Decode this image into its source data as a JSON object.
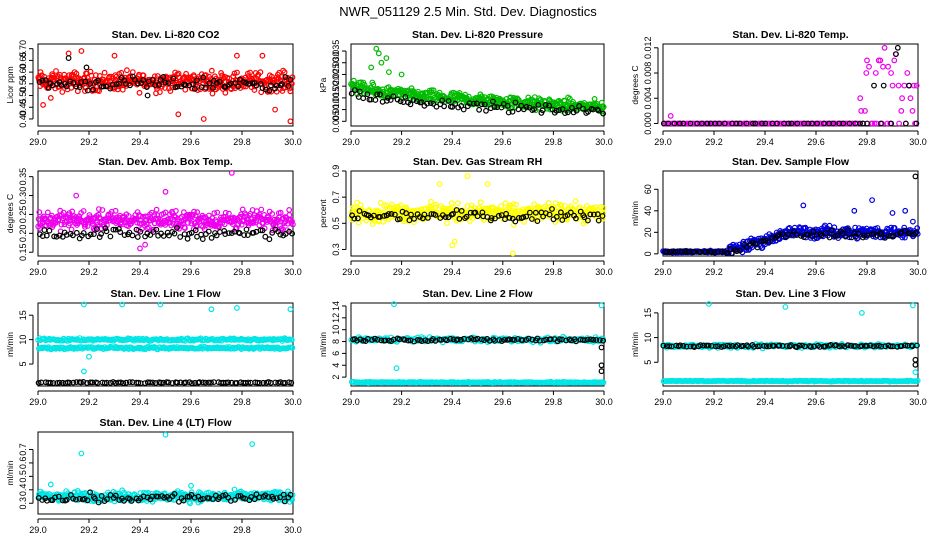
{
  "figure_title": "NWR_051129  2.5 Min. Std. Dev. Diagnostics",
  "chart_data": [
    {
      "type": "scatter",
      "title": "Stan. Dev. Li-820 CO2",
      "xlabel": "",
      "ylabel": "Licor ppm",
      "xlim": [
        29.0,
        30.0
      ],
      "ylim": [
        0.37,
        0.72
      ],
      "x_ticks": [
        "29.0",
        "29.2",
        "29.4",
        "29.6",
        "29.8",
        "30.0"
      ],
      "y_ticks": [
        0.4,
        0.45,
        0.5,
        0.55,
        0.6,
        0.65,
        0.7
      ],
      "y_tick_labels": [
        "0.40",
        "0.45",
        "0.50",
        "0.55",
        "0.60",
        "0.65",
        "0.70"
      ],
      "series": [
        {
          "color": "#ff0000",
          "x_range": [
            29.0,
            30.0
          ],
          "distribution": "uniform",
          "center": 0.56,
          "spread": 0.06,
          "n": 420,
          "outliers": [
            [
              29.02,
              0.46
            ],
            [
              29.05,
              0.49
            ],
            [
              29.12,
              0.68
            ],
            [
              29.17,
              0.69
            ],
            [
              29.3,
              0.67
            ],
            [
              29.55,
              0.42
            ],
            [
              29.65,
              0.4
            ],
            [
              29.78,
              0.67
            ],
            [
              29.88,
              0.67
            ],
            [
              29.99,
              0.39
            ],
            [
              29.93,
              0.44
            ]
          ]
        },
        {
          "color": "#000000",
          "x_range": [
            29.0,
            30.0
          ],
          "distribution": "uniform",
          "center": 0.55,
          "spread": 0.04,
          "n": 90,
          "outliers": [
            [
              29.12,
              0.66
            ],
            [
              29.19,
              0.62
            ],
            [
              29.43,
              0.5
            ]
          ]
        }
      ]
    },
    {
      "type": "scatter",
      "title": "Stan. Dev. Li-820 Pressure",
      "xlabel": "",
      "ylabel": "kPa",
      "xlim": [
        29.0,
        30.0
      ],
      "ylim": [
        0.003,
        0.038
      ],
      "x_ticks": [
        "29.0",
        "29.2",
        "29.4",
        "29.6",
        "29.8",
        "30.0"
      ],
      "y_ticks": [
        0.005,
        0.01,
        0.015,
        0.02,
        0.025,
        0.03,
        0.035
      ],
      "y_tick_labels": [
        "0.005",
        "0.010",
        "0.015",
        "0.020",
        "0.025",
        "0.030",
        "0.035"
      ],
      "series": [
        {
          "color": "#00bb00",
          "x_range": [
            29.0,
            30.0
          ],
          "distribution": "decay",
          "start": 0.021,
          "end": 0.011,
          "spread": 0.004,
          "n": 420,
          "outliers": [
            [
              29.1,
              0.036
            ],
            [
              29.11,
              0.034
            ],
            [
              29.12,
              0.03
            ],
            [
              29.14,
              0.032
            ],
            [
              29.08,
              0.028
            ],
            [
              29.15,
              0.026
            ],
            [
              29.2,
              0.025
            ]
          ]
        },
        {
          "color": "#000000",
          "x_range": [
            29.0,
            30.0
          ],
          "distribution": "decay",
          "start": 0.018,
          "end": 0.009,
          "spread": 0.003,
          "n": 90,
          "outliers": []
        }
      ]
    },
    {
      "type": "scatter",
      "title": "Stan. Dev. Li-820 Temp.",
      "xlabel": "",
      "ylabel": "degrees C",
      "xlim": [
        29.0,
        30.0
      ],
      "ylim": [
        -0.0004,
        0.0126
      ],
      "x_ticks": [
        "29.0",
        "29.2",
        "29.4",
        "29.6",
        "29.8",
        "30.0"
      ],
      "y_ticks": [
        0.0,
        0.004,
        0.008,
        0.012
      ],
      "y_tick_labels": [
        "0.000",
        "0.004",
        "0.008",
        "0.012"
      ],
      "series": [
        {
          "color": "#ee00ee",
          "x_range": [
            29.0,
            30.0
          ],
          "distribution": "step",
          "base": 0.0,
          "step_x": 29.76,
          "high_values": [
            0.002,
            0.004,
            0.006,
            0.008,
            0.009,
            0.01,
            0.011,
            0.012
          ],
          "n": 160,
          "outliers": [
            [
              29.03,
              0.0012
            ]
          ]
        },
        {
          "color": "#000000",
          "x_range": [
            29.0,
            30.0
          ],
          "distribution": "step",
          "base": 0.0,
          "step_x": 29.8,
          "high_values": [
            0.006,
            0.009,
            0.011,
            0.012
          ],
          "n": 50,
          "outliers": []
        }
      ]
    },
    {
      "type": "scatter",
      "title": "Stan. Dev. Amb. Box Temp.",
      "xlabel": "",
      "ylabel": "degrees C",
      "xlim": [
        29.0,
        30.0
      ],
      "ylim": [
        0.14,
        0.365
      ],
      "x_ticks": [
        "29.0",
        "29.2",
        "29.4",
        "29.6",
        "29.8",
        "30.0"
      ],
      "y_ticks": [
        0.15,
        0.2,
        0.25,
        0.3,
        0.35
      ],
      "y_tick_labels": [
        "0.15",
        "0.20",
        "0.25",
        "0.30",
        "0.35"
      ],
      "series": [
        {
          "color": "#ee00ee",
          "x_range": [
            29.0,
            30.0
          ],
          "distribution": "uniform",
          "center": 0.235,
          "spread": 0.035,
          "n": 420,
          "outliers": [
            [
              29.4,
              0.16
            ],
            [
              29.42,
              0.17
            ],
            [
              29.76,
              0.36
            ],
            [
              29.15,
              0.3
            ],
            [
              29.5,
              0.31
            ]
          ]
        },
        {
          "color": "#000000",
          "x_range": [
            29.0,
            30.0
          ],
          "distribution": "uniform",
          "center": 0.2,
          "spread": 0.02,
          "n": 90,
          "outliers": []
        }
      ]
    },
    {
      "type": "scatter",
      "title": "Stan. Dev. Gas Stream RH",
      "xlabel": "",
      "ylabel": "percent",
      "xlim": [
        29.0,
        30.0
      ],
      "ylim": [
        0.25,
        0.9
      ],
      "x_ticks": [
        "29.0",
        "29.2",
        "29.4",
        "29.6",
        "29.8",
        "30.0"
      ],
      "y_ticks": [
        0.3,
        0.5,
        0.7,
        0.9
      ],
      "y_tick_labels": [
        "0.3",
        "0.5",
        "0.7",
        "0.9"
      ],
      "series": [
        {
          "color": "#ffff00",
          "x_range": [
            29.0,
            30.0
          ],
          "distribution": "uniform",
          "center": 0.58,
          "spread": 0.1,
          "n": 420,
          "outliers": [
            [
              29.4,
              0.33
            ],
            [
              29.41,
              0.36
            ],
            [
              29.64,
              0.27
            ],
            [
              29.35,
              0.8
            ],
            [
              29.46,
              0.86
            ],
            [
              29.54,
              0.8
            ]
          ]
        },
        {
          "color": "#000000",
          "x_range": [
            29.0,
            30.0
          ],
          "distribution": "uniform",
          "center": 0.56,
          "spread": 0.06,
          "n": 90,
          "outliers": []
        }
      ]
    },
    {
      "type": "scatter",
      "title": "Stan. Dev. Sample Flow",
      "xlabel": "",
      "ylabel": "ml/min",
      "xlim": [
        29.0,
        30.0
      ],
      "ylim": [
        -2,
        77
      ],
      "x_ticks": [
        "29.0",
        "29.2",
        "29.4",
        "29.6",
        "29.8",
        "30.0"
      ],
      "y_ticks": [
        0,
        20,
        40,
        60
      ],
      "y_tick_labels": [
        "0",
        "20",
        "40",
        "60"
      ],
      "series": [
        {
          "color": "#0000dd",
          "x_range": [
            29.0,
            30.0
          ],
          "distribution": "ramp",
          "start": 2,
          "ramp_start": 29.25,
          "ramp_end": 29.5,
          "end": 20,
          "spread": 8,
          "n": 420,
          "outliers": [
            [
              29.55,
              45
            ],
            [
              29.75,
              40
            ],
            [
              29.82,
              50
            ],
            [
              29.9,
              38
            ],
            [
              29.95,
              40
            ],
            [
              29.98,
              30
            ]
          ]
        },
        {
          "color": "#000000",
          "x_range": [
            29.0,
            30.0
          ],
          "distribution": "ramp",
          "start": 2,
          "ramp_start": 29.25,
          "ramp_end": 29.5,
          "end": 18,
          "spread": 5,
          "n": 90,
          "outliers": [
            [
              29.99,
              72
            ]
          ]
        }
      ]
    },
    {
      "type": "scatter",
      "title": "Stan. Dev. Line 1 Flow",
      "xlabel": "",
      "ylabel": "ml/min",
      "xlim": [
        29.0,
        30.0
      ],
      "ylim": [
        0.5,
        17.5
      ],
      "x_ticks": [
        "29.0",
        "29.2",
        "29.4",
        "29.6",
        "29.8",
        "30.0"
      ],
      "y_ticks": [
        5,
        10,
        15
      ],
      "y_tick_labels": [
        "5",
        "10",
        "15"
      ],
      "series": [
        {
          "color": "#00e5e5",
          "x_range": [
            29.0,
            30.0
          ],
          "distribution": "bands",
          "bands": [
            [
              10.0,
              0.4
            ],
            [
              8.3,
              0.4
            ]
          ],
          "n": 420,
          "outliers": [
            [
              29.18,
              17.2
            ],
            [
              29.33,
              17.2
            ],
            [
              29.48,
              17.2
            ],
            [
              29.68,
              16.2
            ],
            [
              29.78,
              16.5
            ],
            [
              29.99,
              16.2
            ],
            [
              29.18,
              3.5
            ],
            [
              29.2,
              6.5
            ]
          ]
        },
        {
          "color": "#000000",
          "x_range": [
            29.0,
            30.0
          ],
          "distribution": "bands",
          "bands": [
            [
              1.2,
              0.15
            ]
          ],
          "n": 90,
          "outliers": []
        }
      ]
    },
    {
      "type": "scatter",
      "title": "Stan. Dev. Line 2 Flow",
      "xlabel": "",
      "ylabel": "ml/min",
      "xlim": [
        29.0,
        30.0
      ],
      "ylim": [
        0.5,
        14.5
      ],
      "x_ticks": [
        "29.0",
        "29.2",
        "29.4",
        "29.6",
        "29.8",
        "30.0"
      ],
      "y_ticks": [
        2,
        4,
        6,
        8,
        10,
        12,
        14
      ],
      "y_tick_labels": [
        "2",
        "4",
        "6",
        "8",
        "10",
        "12",
        "14"
      ],
      "series": [
        {
          "color": "#00e5e5",
          "x_range": [
            29.0,
            30.0
          ],
          "distribution": "bands",
          "bands": [
            [
              8.3,
              0.6
            ],
            [
              1.1,
              0.15
            ]
          ],
          "n": 420,
          "outliers": [
            [
              29.17,
              14.3
            ],
            [
              29.99,
              14.1
            ],
            [
              29.18,
              3.5
            ]
          ]
        },
        {
          "color": "#000000",
          "x_range": [
            29.0,
            30.0
          ],
          "distribution": "bands",
          "bands": [
            [
              8.3,
              0.35
            ]
          ],
          "n": 90,
          "outliers": [
            [
              29.99,
              3.0
            ],
            [
              29.99,
              4.0
            ],
            [
              29.99,
              7.0
            ]
          ]
        }
      ]
    },
    {
      "type": "scatter",
      "title": "Stan. Dev. Line 3 Flow",
      "xlabel": "",
      "ylabel": "ml/min",
      "xlim": [
        29.0,
        30.0
      ],
      "ylim": [
        0.2,
        17
      ],
      "x_ticks": [
        "29.0",
        "29.2",
        "29.4",
        "29.6",
        "29.8",
        "30.0"
      ],
      "y_ticks": [
        5,
        10,
        15
      ],
      "y_tick_labels": [
        "5",
        "10",
        "15"
      ],
      "series": [
        {
          "color": "#00e5e5",
          "x_range": [
            29.0,
            30.0
          ],
          "distribution": "bands",
          "bands": [
            [
              8.3,
              0.6
            ],
            [
              1.2,
              0.15
            ]
          ],
          "n": 420,
          "outliers": [
            [
              29.18,
              16.8
            ],
            [
              29.48,
              16.2
            ],
            [
              29.78,
              15.0
            ],
            [
              29.98,
              16.5
            ],
            [
              29.99,
              3.0
            ]
          ]
        },
        {
          "color": "#000000",
          "x_range": [
            29.0,
            30.0
          ],
          "distribution": "bands",
          "bands": [
            [
              8.3,
              0.3
            ]
          ],
          "n": 90,
          "outliers": [
            [
              29.99,
              4.5
            ],
            [
              29.99,
              5.5
            ]
          ]
        }
      ]
    },
    {
      "type": "scatter",
      "title": "Stan. Dev. Line 4 (LT) Flow",
      "xlabel": "",
      "ylabel": "ml/min",
      "xlim": [
        29.0,
        30.0
      ],
      "ylim": [
        0.22,
        0.83
      ],
      "x_ticks": [
        "29.0",
        "29.2",
        "29.4",
        "29.6",
        "29.8",
        "30.0"
      ],
      "y_ticks": [
        0.3,
        0.4,
        0.5,
        0.6,
        0.7
      ],
      "y_tick_labels": [
        "0.3",
        "0.4",
        "0.5",
        "0.6",
        "0.7"
      ],
      "series": [
        {
          "color": "#00e5e5",
          "x_range": [
            29.0,
            30.0
          ],
          "distribution": "uniform",
          "center": 0.35,
          "spread": 0.055,
          "n": 420,
          "outliers": [
            [
              29.17,
              0.67
            ],
            [
              29.5,
              0.81
            ],
            [
              29.84,
              0.74
            ],
            [
              29.05,
              0.44
            ],
            [
              29.6,
              0.43
            ]
          ]
        },
        {
          "color": "#000000",
          "x_range": [
            29.0,
            30.0
          ],
          "distribution": "uniform",
          "center": 0.34,
          "spread": 0.05,
          "n": 90,
          "outliers": []
        }
      ]
    }
  ]
}
